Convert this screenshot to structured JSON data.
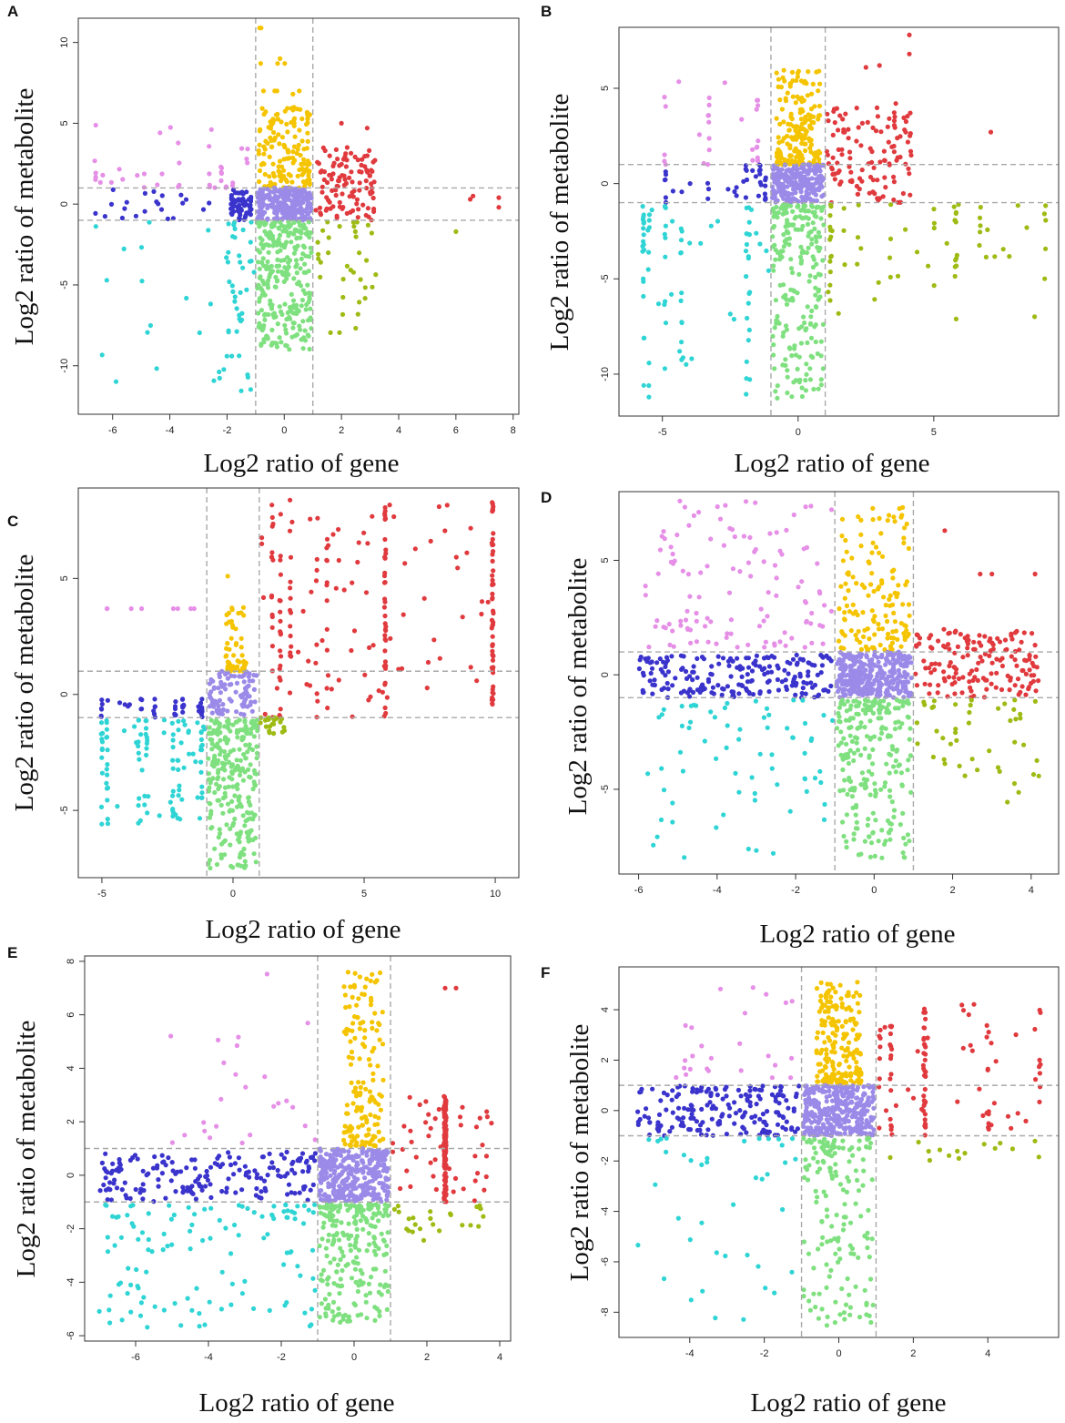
{
  "figure": {
    "panels_label_note": "Six scatter panels A-F"
  },
  "colors": {
    "pink": "#e58fe6",
    "yellow": "#f5c400",
    "red": "#e03a3e",
    "blue": "#3a33cc",
    "lavender": "#9b8ae8",
    "olive": "#9dbb13",
    "cyan": "#2fd4d4",
    "green": "#7fe07f"
  },
  "chart_data": [
    {
      "panel": "A",
      "type": "scatter",
      "xlabel": "Log2 ratio of gene",
      "ylabel": "Log2 ratio of metabolite",
      "xlim": [
        -7.2,
        8.2
      ],
      "ylim": [
        -13,
        11.5
      ],
      "xticks": [
        "-6",
        "-4",
        "-2",
        "0",
        "2",
        "4",
        "6",
        "8"
      ],
      "xtick_values": [
        -6,
        -4,
        -2,
        0,
        2,
        4,
        6,
        8
      ],
      "yticks": [
        "-10",
        "-5",
        "0",
        "5",
        "10"
      ],
      "ytick_values": [
        -10,
        -5,
        0,
        5,
        10
      ],
      "thresholds": {
        "x": [
          -1,
          1
        ],
        "y": [
          -1,
          1
        ]
      },
      "seed": 11,
      "clusters": [
        {
          "color": "pink",
          "n": 40,
          "x": [
            -6.6,
            -1.2
          ],
          "y": [
            1,
            5
          ],
          "xs": [
            -6.6,
            -4.9,
            -3.7,
            -2.6,
            -2.2,
            -1.8,
            -1.5,
            -1.3
          ]
        },
        {
          "color": "yellow",
          "n": 160,
          "x": [
            -0.9,
            0.9
          ],
          "y": [
            1,
            6
          ],
          "ys": [
            9,
            8.7,
            8.7,
            10.9,
            7,
            6.8
          ]
        },
        {
          "color": "red",
          "n": 110,
          "x": [
            1.05,
            3.2
          ],
          "y": [
            -1,
            3.5
          ],
          "extra": [
            [
              6.5,
              0.3
            ],
            [
              6.6,
              0.5
            ],
            [
              7.5,
              0.4
            ],
            [
              7.5,
              -0.2
            ],
            [
              2,
              5
            ],
            [
              2.9,
              4.7
            ],
            [
              2.2,
              3.5
            ]
          ]
        },
        {
          "color": "blue",
          "n": 80,
          "x": [
            -6.6,
            -1.05
          ],
          "y": [
            -1,
            0.9
          ],
          "cx": -1.5,
          "cs": 0.35
        },
        {
          "color": "lavender",
          "n": 260,
          "x": [
            -0.95,
            0.95
          ],
          "y": [
            -1,
            1
          ]
        },
        {
          "color": "olive",
          "n": 35,
          "x": [
            1.05,
            3.2
          ],
          "y": [
            -9,
            -1.1
          ],
          "extra": [
            [
              6,
              -1.7
            ]
          ]
        },
        {
          "color": "cyan",
          "n": 60,
          "x": [
            -6.6,
            -1.05
          ],
          "y": [
            -12.2,
            -1.1
          ],
          "cx": -1.6,
          "cs": 0.45
        },
        {
          "color": "green",
          "n": 280,
          "x": [
            -0.95,
            0.95
          ],
          "y": [
            -9,
            -1.1
          ]
        }
      ]
    },
    {
      "panel": "B",
      "type": "scatter",
      "xlabel": "Log2 ratio of gene",
      "ylabel": "Log2 ratio of metabolite",
      "xlim": [
        -6.6,
        9.6
      ],
      "ylim": [
        -12.2,
        8.2
      ],
      "xticks": [
        "-5",
        "0",
        "5"
      ],
      "xtick_values": [
        -5,
        0,
        5
      ],
      "yticks": [
        "-10",
        "-5",
        "0",
        "5"
      ],
      "ytick_values": [
        -10,
        -5,
        0,
        5
      ],
      "thresholds": {
        "x": [
          -1,
          1
        ],
        "y": [
          -1,
          1
        ]
      },
      "seed": 22,
      "clusters": [
        {
          "color": "pink",
          "n": 30,
          "x": [
            -4.9,
            -1.2
          ],
          "y": [
            1,
            5.4
          ],
          "xs": [
            -4.9,
            -3.3,
            -1.7,
            -1.5
          ]
        },
        {
          "color": "yellow",
          "n": 190,
          "x": [
            -0.8,
            0.8
          ],
          "y": [
            1,
            6
          ]
        },
        {
          "color": "red",
          "n": 120,
          "x": [
            1.05,
            4.2
          ],
          "y": [
            -1,
            4
          ],
          "extra": [
            [
              4.1,
              7.8
            ],
            [
              4.1,
              6.8
            ],
            [
              3.6,
              4.2
            ],
            [
              7.1,
              2.7
            ],
            [
              2.5,
              6.1
            ],
            [
              3,
              6.2
            ]
          ]
        },
        {
          "color": "blue",
          "n": 40,
          "x": [
            -4.9,
            -1.05
          ],
          "y": [
            -1,
            1
          ],
          "xs": [
            -4.9,
            -3.3,
            -1.9,
            -1.4,
            -1.2
          ]
        },
        {
          "color": "lavender",
          "n": 250,
          "x": [
            -0.95,
            0.95
          ],
          "y": [
            -1,
            1
          ]
        },
        {
          "color": "olive",
          "n": 70,
          "x": [
            1.05,
            9.2
          ],
          "y": [
            -7.5,
            -1.1
          ],
          "xs": [
            1.2,
            1.7,
            2.2,
            3.4,
            5,
            5.8,
            6.7,
            9.1
          ]
        },
        {
          "color": "cyan",
          "n": 90,
          "x": [
            -5.7,
            -1.05
          ],
          "y": [
            -11.3,
            -1.1
          ],
          "xs": [
            -5.7,
            -5.5,
            -4.9,
            -4.3,
            -1.9,
            -1.8
          ]
        },
        {
          "color": "green",
          "n": 230,
          "x": [
            -0.95,
            0.95
          ],
          "y": [
            -11.3,
            -1.1
          ]
        }
      ]
    },
    {
      "panel": "C",
      "type": "scatter",
      "xlabel": "Log2 ratio of gene",
      "ylabel": "Log2 ratio of metabolite",
      "xlim": [
        -5.9,
        10.9
      ],
      "ylim": [
        -7.9,
        8.9
      ],
      "xticks": [
        "-5",
        "0",
        "5",
        "10"
      ],
      "xtick_values": [
        -5,
        0,
        5,
        10
      ],
      "yticks": [
        "-5",
        "0",
        "5"
      ],
      "ytick_values": [
        -5,
        0,
        5
      ],
      "thresholds": {
        "x": [
          -1,
          1
        ],
        "y": [
          -1,
          1
        ]
      },
      "seed": 33,
      "clusters": [
        {
          "color": "pink",
          "n": 8,
          "x": [
            -5,
            -1.2
          ],
          "y": [
            3.7,
            3.7
          ],
          "xs": [
            -5,
            -4.8,
            -3.5,
            -2.3,
            -1.9,
            -1.6
          ]
        },
        {
          "color": "yellow",
          "n": 55,
          "x": [
            -0.3,
            0.5
          ],
          "y": [
            1,
            4
          ],
          "extra": [
            [
              -0.2,
              5.1
            ]
          ]
        },
        {
          "color": "red",
          "n": 230,
          "x": [
            1,
            10
          ],
          "y": [
            -1,
            8.4
          ],
          "xs": [
            5.8,
            5.8,
            5.8,
            9.9,
            9.9,
            9.9,
            9.9,
            3.6,
            3.2,
            1.5,
            1.8,
            2.2
          ]
        },
        {
          "color": "blue",
          "n": 45,
          "x": [
            -5,
            -1.05
          ],
          "y": [
            -1,
            -0.2
          ],
          "xs": [
            -5,
            -3.5,
            -3,
            -2.2,
            -1.9,
            -1.2
          ]
        },
        {
          "color": "lavender",
          "n": 90,
          "x": [
            -0.9,
            0.9
          ],
          "y": [
            -0.9,
            1
          ]
        },
        {
          "color": "olive",
          "n": 25,
          "x": [
            1,
            2
          ],
          "y": [
            -1.7,
            -1
          ]
        },
        {
          "color": "cyan",
          "n": 110,
          "x": [
            -5,
            -1.05
          ],
          "y": [
            -5.6,
            -1.1
          ],
          "xs": [
            -5,
            -4.8,
            -3.6,
            -3.3,
            -2.3,
            -2.1,
            -1.2
          ]
        },
        {
          "color": "green",
          "n": 260,
          "x": [
            -0.95,
            0.95
          ],
          "y": [
            -7.5,
            -1.1
          ]
        }
      ]
    },
    {
      "panel": "D",
      "type": "scatter",
      "xlabel": "Log2 ratio of gene",
      "ylabel": "Log2 ratio of metabolite",
      "xlim": [
        -6.5,
        4.7
      ],
      "ylim": [
        -8.7,
        8.0
      ],
      "xticks": [
        "-6",
        "-4",
        "-2",
        "0",
        "2",
        "4"
      ],
      "xtick_values": [
        -6,
        -4,
        -2,
        0,
        2,
        4
      ],
      "yticks": [
        "-5",
        "0",
        "5"
      ],
      "ytick_values": [
        -5,
        0,
        5
      ],
      "thresholds": {
        "x": [
          -1,
          1
        ],
        "y": [
          -1,
          1
        ]
      },
      "seed": 44,
      "clusters": [
        {
          "color": "pink",
          "n": 120,
          "x": [
            -6,
            -1.05
          ],
          "y": [
            1.2,
            7.6
          ]
        },
        {
          "color": "yellow",
          "n": 140,
          "x": [
            -0.9,
            0.9
          ],
          "y": [
            1.1,
            7.6
          ]
        },
        {
          "color": "red",
          "n": 160,
          "x": [
            1.05,
            4.2
          ],
          "y": [
            -1,
            2
          ],
          "extra": [
            [
              1.8,
              6.3
            ],
            [
              2.7,
              4.4
            ],
            [
              3,
              4.4
            ],
            [
              4.1,
              4.4
            ]
          ]
        },
        {
          "color": "blue",
          "n": 200,
          "x": [
            -6,
            -1.05
          ],
          "y": [
            -1,
            0.9
          ]
        },
        {
          "color": "lavender",
          "n": 330,
          "x": [
            -0.95,
            0.95
          ],
          "y": [
            -1,
            1
          ]
        },
        {
          "color": "olive",
          "n": 45,
          "x": [
            1.05,
            4.2
          ],
          "y": [
            -5.6,
            -1.1
          ]
        },
        {
          "color": "cyan",
          "n": 70,
          "x": [
            -6,
            -1.05
          ],
          "y": [
            -8,
            -1.1
          ]
        },
        {
          "color": "green",
          "n": 230,
          "x": [
            -0.95,
            0.95
          ],
          "y": [
            -8,
            -1.1
          ]
        }
      ]
    },
    {
      "panel": "E",
      "type": "scatter",
      "xlabel": "Log2 ratio of gene",
      "ylabel": "Log2 ratio of metabolite",
      "xlim": [
        -7.4,
        4.3
      ],
      "ylim": [
        -6.2,
        8.2
      ],
      "xticks": [
        "-6",
        "-4",
        "-2",
        "0",
        "2",
        "4"
      ],
      "xtick_values": [
        -6,
        -4,
        -2,
        0,
        2,
        4
      ],
      "yticks": [
        "-6",
        "-4",
        "-2",
        "0",
        "2",
        "4",
        "6",
        "8"
      ],
      "ytick_values": [
        -6,
        -4,
        -2,
        0,
        2,
        4,
        6,
        8
      ],
      "thresholds": {
        "x": [
          -1,
          1
        ],
        "y": [
          -1,
          1
        ]
      },
      "seed": 55,
      "clusters": [
        {
          "color": "pink",
          "n": 25,
          "x": [
            -5.2,
            -1.05
          ],
          "y": [
            1.2,
            7.6
          ]
        },
        {
          "color": "yellow",
          "n": 150,
          "x": [
            -0.3,
            0.8
          ],
          "y": [
            1.1,
            7.6
          ]
        },
        {
          "color": "red",
          "n": 180,
          "x": [
            1.05,
            3.8
          ],
          "y": [
            -1,
            3
          ],
          "xs": [
            2.5,
            2.5,
            2.5,
            2.5
          ],
          "extra": [
            [
              2.5,
              7
            ],
            [
              2.8,
              7
            ]
          ]
        },
        {
          "color": "blue",
          "n": 180,
          "x": [
            -7,
            -1.05
          ],
          "y": [
            -1,
            0.9
          ]
        },
        {
          "color": "lavender",
          "n": 320,
          "x": [
            -0.95,
            0.95
          ],
          "y": [
            -1,
            1
          ]
        },
        {
          "color": "olive",
          "n": 25,
          "x": [
            1.05,
            3.8
          ],
          "y": [
            -2.5,
            -1.1
          ]
        },
        {
          "color": "cyan",
          "n": 120,
          "x": [
            -7,
            -1.05
          ],
          "y": [
            -5.7,
            -1.1
          ]
        },
        {
          "color": "green",
          "n": 220,
          "x": [
            -0.95,
            0.95
          ],
          "y": [
            -5.6,
            -1.1
          ]
        }
      ]
    },
    {
      "panel": "F",
      "type": "scatter",
      "xlabel": "Log2 ratio of gene",
      "ylabel": "Log2 ratio of metabolite",
      "xlim": [
        -5.9,
        5.9
      ],
      "ylim": [
        -9.0,
        5.7
      ],
      "xticks": [
        "-4",
        "-2",
        "0",
        "2",
        "4"
      ],
      "xtick_values": [
        -4,
        -2,
        0,
        2,
        4
      ],
      "yticks": [
        "-8",
        "-6",
        "-4",
        "-2",
        "0",
        "2",
        "4"
      ],
      "ytick_values": [
        -8,
        -6,
        -4,
        -2,
        0,
        2,
        4
      ],
      "thresholds": {
        "x": [
          -1,
          1
        ],
        "y": [
          -1,
          1
        ]
      },
      "seed": 66,
      "clusters": [
        {
          "color": "pink",
          "n": 25,
          "x": [
            -4.4,
            -1.1
          ],
          "y": [
            1.2,
            5
          ]
        },
        {
          "color": "yellow",
          "n": 200,
          "x": [
            -0.6,
            0.6
          ],
          "y": [
            1.1,
            5.1
          ]
        },
        {
          "color": "red",
          "n": 110,
          "x": [
            1.05,
            5.4
          ],
          "y": [
            -1,
            4.3
          ],
          "xs": [
            2.3,
            2.3,
            2.3,
            1.4,
            1.1,
            4,
            5.4
          ]
        },
        {
          "color": "blue",
          "n": 180,
          "x": [
            -5.4,
            -1.05
          ],
          "y": [
            -1,
            1
          ]
        },
        {
          "color": "lavender",
          "n": 330,
          "x": [
            -0.95,
            0.95
          ],
          "y": [
            -1,
            1
          ]
        },
        {
          "color": "olive",
          "n": 15,
          "x": [
            1.05,
            5.4
          ],
          "y": [
            -2,
            -1.1
          ]
        },
        {
          "color": "cyan",
          "n": 40,
          "x": [
            -5.4,
            -1.1
          ],
          "y": [
            -8.6,
            -1.1
          ]
        },
        {
          "color": "green",
          "n": 160,
          "x": [
            -0.95,
            0.95
          ],
          "y": [
            -8.6,
            -1.1
          ]
        }
      ]
    }
  ]
}
